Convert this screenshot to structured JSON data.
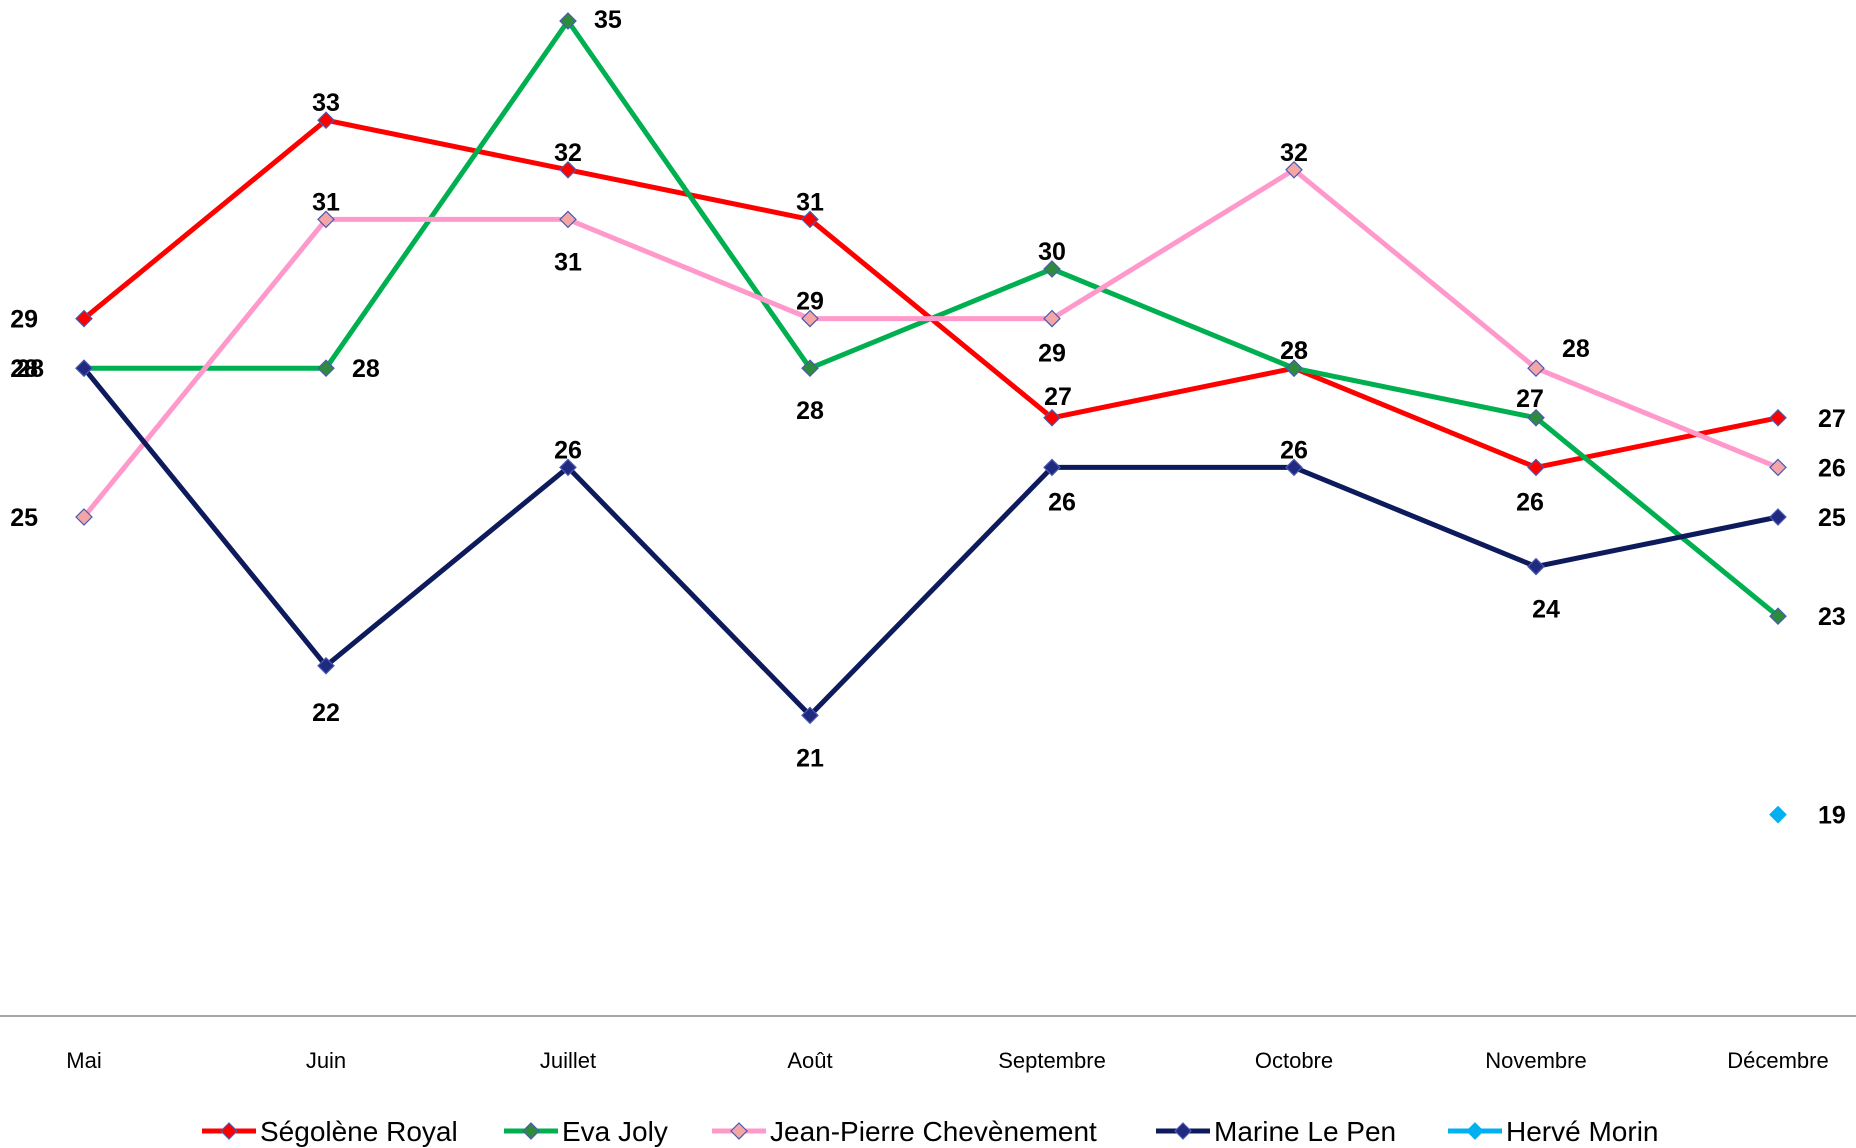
{
  "chart_data": {
    "type": "line",
    "title": "",
    "xlabel": "",
    "ylabel": "",
    "categories": [
      "Mai",
      "Juin",
      "Juillet",
      "Août",
      "Septembre",
      "Octobre",
      "Novembre",
      "Décembre"
    ],
    "ylim": [
      15,
      35
    ],
    "grid": false,
    "legend_position": "bottom",
    "series": [
      {
        "name": "Ségolène Royal",
        "color": "#ff0000",
        "marker_color": "#ff0000",
        "values": [
          29,
          33,
          32,
          31,
          27,
          28,
          26,
          27
        ]
      },
      {
        "name": "Eva Joly",
        "color": "#00b050",
        "marker_color": "#2e8b3e",
        "values": [
          28,
          28,
          35,
          28,
          30,
          28,
          27,
          23
        ]
      },
      {
        "name": "Jean-Pierre Chevènement",
        "color": "#ff99cc",
        "marker_color": "#f4a6a6",
        "values": [
          25,
          31,
          31,
          29,
          29,
          32,
          28,
          26
        ]
      },
      {
        "name": "Marine Le Pen",
        "color": "#0d1a5c",
        "marker_color": "#1f2a80",
        "values": [
          28,
          22,
          26,
          21,
          26,
          26,
          24,
          25
        ]
      },
      {
        "name": "Hervé Morin",
        "color": "#00b0f0",
        "marker_color": "#00b0f0",
        "values": [
          null,
          null,
          null,
          null,
          null,
          null,
          null,
          19
        ]
      }
    ]
  }
}
